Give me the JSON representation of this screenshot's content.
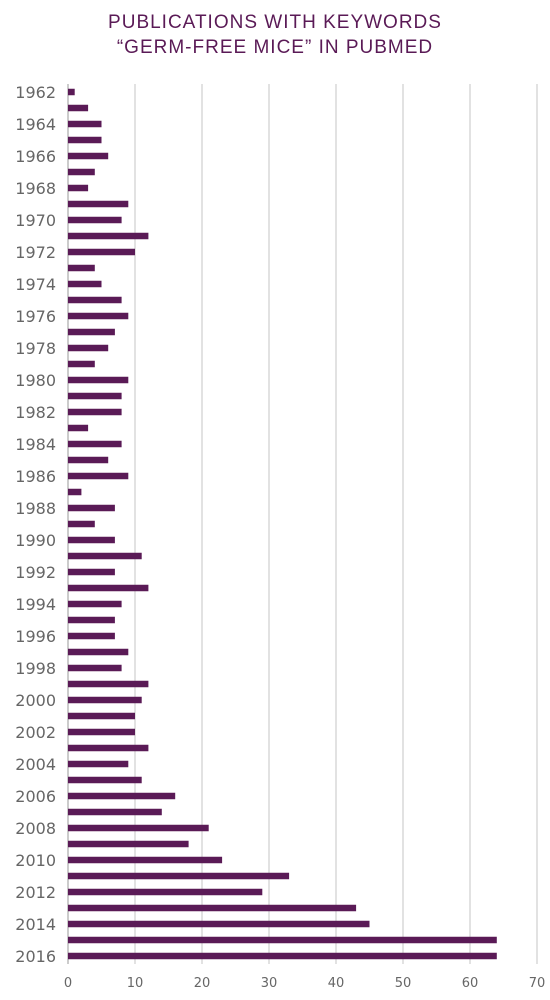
{
  "chart_data": {
    "type": "bar",
    "orientation": "horizontal",
    "title_lines": [
      "PUBLICATIONS WITH KEYWORDS",
      "“GERM-FREE MICE” IN PUBMED"
    ],
    "xlim": [
      0,
      70
    ],
    "x_ticks": [
      0,
      10,
      20,
      30,
      40,
      50,
      60,
      70
    ],
    "grid": true,
    "bar_color": "#5a1a56",
    "categories": [
      "1962",
      "1963",
      "1964",
      "1965",
      "1966",
      "1967",
      "1968",
      "1969",
      "1970",
      "1971",
      "1972",
      "1973",
      "1974",
      "1975",
      "1976",
      "1977",
      "1978",
      "1979",
      "1980",
      "1981",
      "1982",
      "1983",
      "1984",
      "1985",
      "1986",
      "1987",
      "1988",
      "1989",
      "1990",
      "1991",
      "1992",
      "1993",
      "1994",
      "1995",
      "1996",
      "1997",
      "1998",
      "1999",
      "2000",
      "2001",
      "2002",
      "2003",
      "2004",
      "2005",
      "2006",
      "2007",
      "2008",
      "2009",
      "2010",
      "2011",
      "2012",
      "2013",
      "2014",
      "2015",
      "2016"
    ],
    "category_labels": [
      "1962",
      "",
      "1964",
      "",
      "1966",
      "",
      "1968",
      "",
      "1970",
      "",
      "1972",
      "",
      "1974",
      "",
      "1976",
      "",
      "1978",
      "",
      "1980",
      "",
      "1982",
      "",
      "1984",
      "",
      "1986",
      "",
      "1988",
      "",
      "1990",
      "",
      "1992",
      "",
      "1994",
      "",
      "1996",
      "",
      "1998",
      "",
      "2000",
      "",
      "2002",
      "",
      "2004",
      "",
      "2006",
      "",
      "2008",
      "",
      "2010",
      "",
      "2012",
      "",
      "2014",
      "",
      "2016"
    ],
    "values": [
      1,
      3,
      5,
      5,
      6,
      4,
      3,
      9,
      8,
      12,
      10,
      4,
      5,
      8,
      9,
      7,
      6,
      4,
      9,
      8,
      8,
      3,
      8,
      6,
      9,
      2,
      7,
      4,
      7,
      11,
      7,
      12,
      8,
      7,
      7,
      9,
      8,
      12,
      11,
      10,
      10,
      12,
      9,
      11,
      16,
      14,
      21,
      18,
      23,
      33,
      29,
      43,
      45,
      64,
      64
    ]
  }
}
